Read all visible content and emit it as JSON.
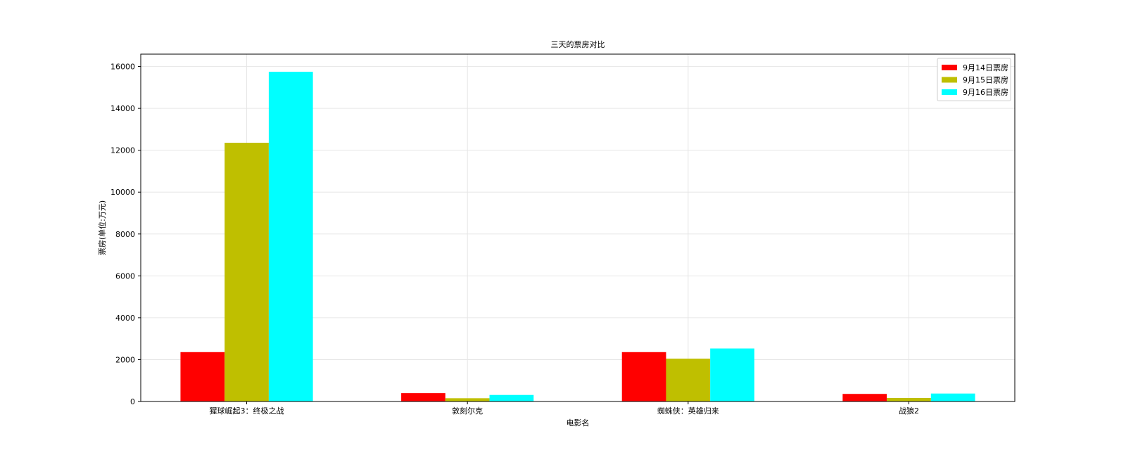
{
  "chart_data": {
    "type": "bar",
    "title": "三天的票房对比",
    "xlabel": "电影名",
    "ylabel": "票房(单位:万元)",
    "categories": [
      "猩球崛起3：终极之战",
      "敦刻尔克",
      "蜘蛛侠：英雄归来",
      "战狼2"
    ],
    "series": [
      {
        "name": "9月14日票房",
        "color": "#ff0000",
        "values": [
          2358,
          399,
          2358,
          362
        ]
      },
      {
        "name": "9月15日票房",
        "color": "#bfbf00",
        "values": [
          12357,
          156,
          2045,
          168
        ]
      },
      {
        "name": "9月16日票房",
        "color": "#00ffff",
        "values": [
          15746,
          312,
          2533,
          380
        ]
      }
    ],
    "ylim": [
      0,
      16590
    ],
    "yticks": [
      0,
      2000,
      4000,
      6000,
      8000,
      10000,
      12000,
      14000,
      16000
    ],
    "grid": true,
    "legend_position": "upper right"
  }
}
